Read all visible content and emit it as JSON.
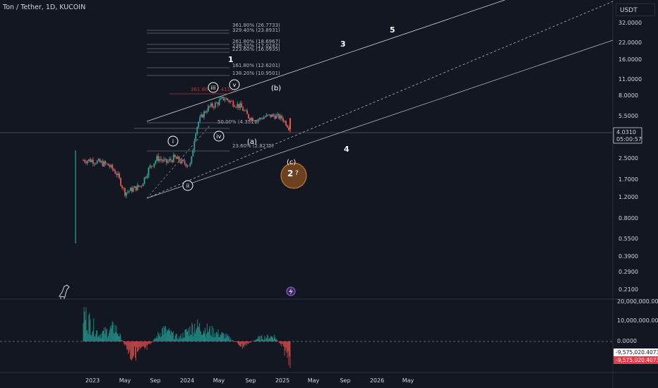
{
  "header": {
    "symbol": "Ton / Tether, 1D, KUCOIN",
    "currency": "USDT"
  },
  "colors": {
    "bg": "#131722",
    "up": "#26a69a",
    "down": "#ef5350",
    "grid": "#2a2e39",
    "text": "#d1d4dc",
    "circle": "#b5651d",
    "fib_red": "#b23a3a"
  },
  "price_axis": {
    "ticks": [
      "32.0000",
      "22.0000",
      "16.0000",
      "11.0000",
      "8.0000",
      "5.5000",
      "3.5000",
      "2.5000",
      "1.7000",
      "1.2000",
      "0.8000",
      "0.5500",
      "0.3900",
      "0.2900",
      "0.2100"
    ],
    "scale": "log",
    "last_price": "4.0310",
    "countdown": "05:00:57"
  },
  "volume_axis": {
    "ticks": [
      "20,000,000.0000",
      "10,000,000.0000",
      "0.0000"
    ],
    "last_value_1": "-9,575,020.4073",
    "last_value_2": "-9,575,020.4073"
  },
  "time_axis": {
    "ticks": [
      "2023",
      "May",
      "Sep",
      "2024",
      "May",
      "Sep",
      "2025",
      "May",
      "Sep",
      "2026",
      "May"
    ]
  },
  "fib_levels": [
    "361.80% (26.7733)",
    "329.40% (23.8931)",
    "261.80% (18.6967)",
    "238.20% (17.0247)",
    "223.60% (16.0935)",
    "161.80% (12.6201)",
    "138.20% (10.9501)",
    "361.80% (7.4110)",
    "50.00% (4.3511)",
    "23.60% (2.8275)"
  ],
  "wave_labels": {
    "w1": "1",
    "w2": "2",
    "w3": "3",
    "w4": "4",
    "w5": "5",
    "wi": "i",
    "wii": "ii",
    "wiii": "iii",
    "wiv": "iv",
    "wv": "v",
    "wa": "(a)",
    "wb": "(b)",
    "wc": "(c)",
    "qmark": "?"
  },
  "chart_data": [
    {
      "type": "candlestick",
      "title": "Ton / Tether, 1D, KUCOIN",
      "y_scale": "log",
      "ylim": [
        0.21,
        32
      ],
      "x": [
        "2023-01",
        "2023-02",
        "2023-03",
        "2023-04",
        "2023-05",
        "2023-06",
        "2023-07",
        "2023-08",
        "2023-09",
        "2023-10",
        "2023-11",
        "2023-12",
        "2024-01",
        "2024-02",
        "2024-03",
        "2024-04",
        "2024-05",
        "2024-06",
        "2024-07",
        "2024-08",
        "2024-09",
        "2024-10",
        "2024-11",
        "2024-12",
        "2025-01",
        "2025-02"
      ],
      "close": [
        2.4,
        2.4,
        2.3,
        2.2,
        1.9,
        1.3,
        1.4,
        1.5,
        2.1,
        2.5,
        2.3,
        2.5,
        2.3,
        2.2,
        5.0,
        6.3,
        6.8,
        7.6,
        7.0,
        6.5,
        5.3,
        5.0,
        5.4,
        5.5,
        5.2,
        4.03
      ],
      "last_price": 4.031
    },
    {
      "type": "bar",
      "title": "volume oscillator",
      "ylim": [
        -10000000,
        20000000
      ],
      "x": [
        "2023-01",
        "2023-03",
        "2023-05",
        "2023-07",
        "2023-09",
        "2023-11",
        "2024-01",
        "2024-03",
        "2024-05",
        "2024-07",
        "2024-09",
        "2024-11",
        "2025-01",
        "2025-02"
      ],
      "values": [
        16000000,
        4000000,
        8000000,
        -8000000,
        -4000000,
        7000000,
        2000000,
        9000000,
        6000000,
        3000000,
        -3000000,
        2000000,
        3000000,
        -9575020.4073
      ]
    }
  ]
}
